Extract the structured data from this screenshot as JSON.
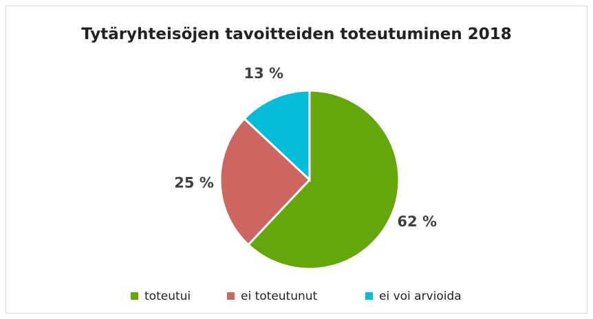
{
  "chart_data": {
    "type": "pie",
    "title": "Tytäryhteisöjen tavoitteiden toteutuminen 2018",
    "categories": [
      "toteutui",
      "ei toteutunut",
      "ei voi arvioida"
    ],
    "values": [
      62,
      25,
      13
    ],
    "value_labels": [
      "62 %",
      "25 %",
      "13 %"
    ],
    "colors": [
      "#63a70a",
      "#cd6660",
      "#05bcd8"
    ],
    "legend": "bottom"
  }
}
